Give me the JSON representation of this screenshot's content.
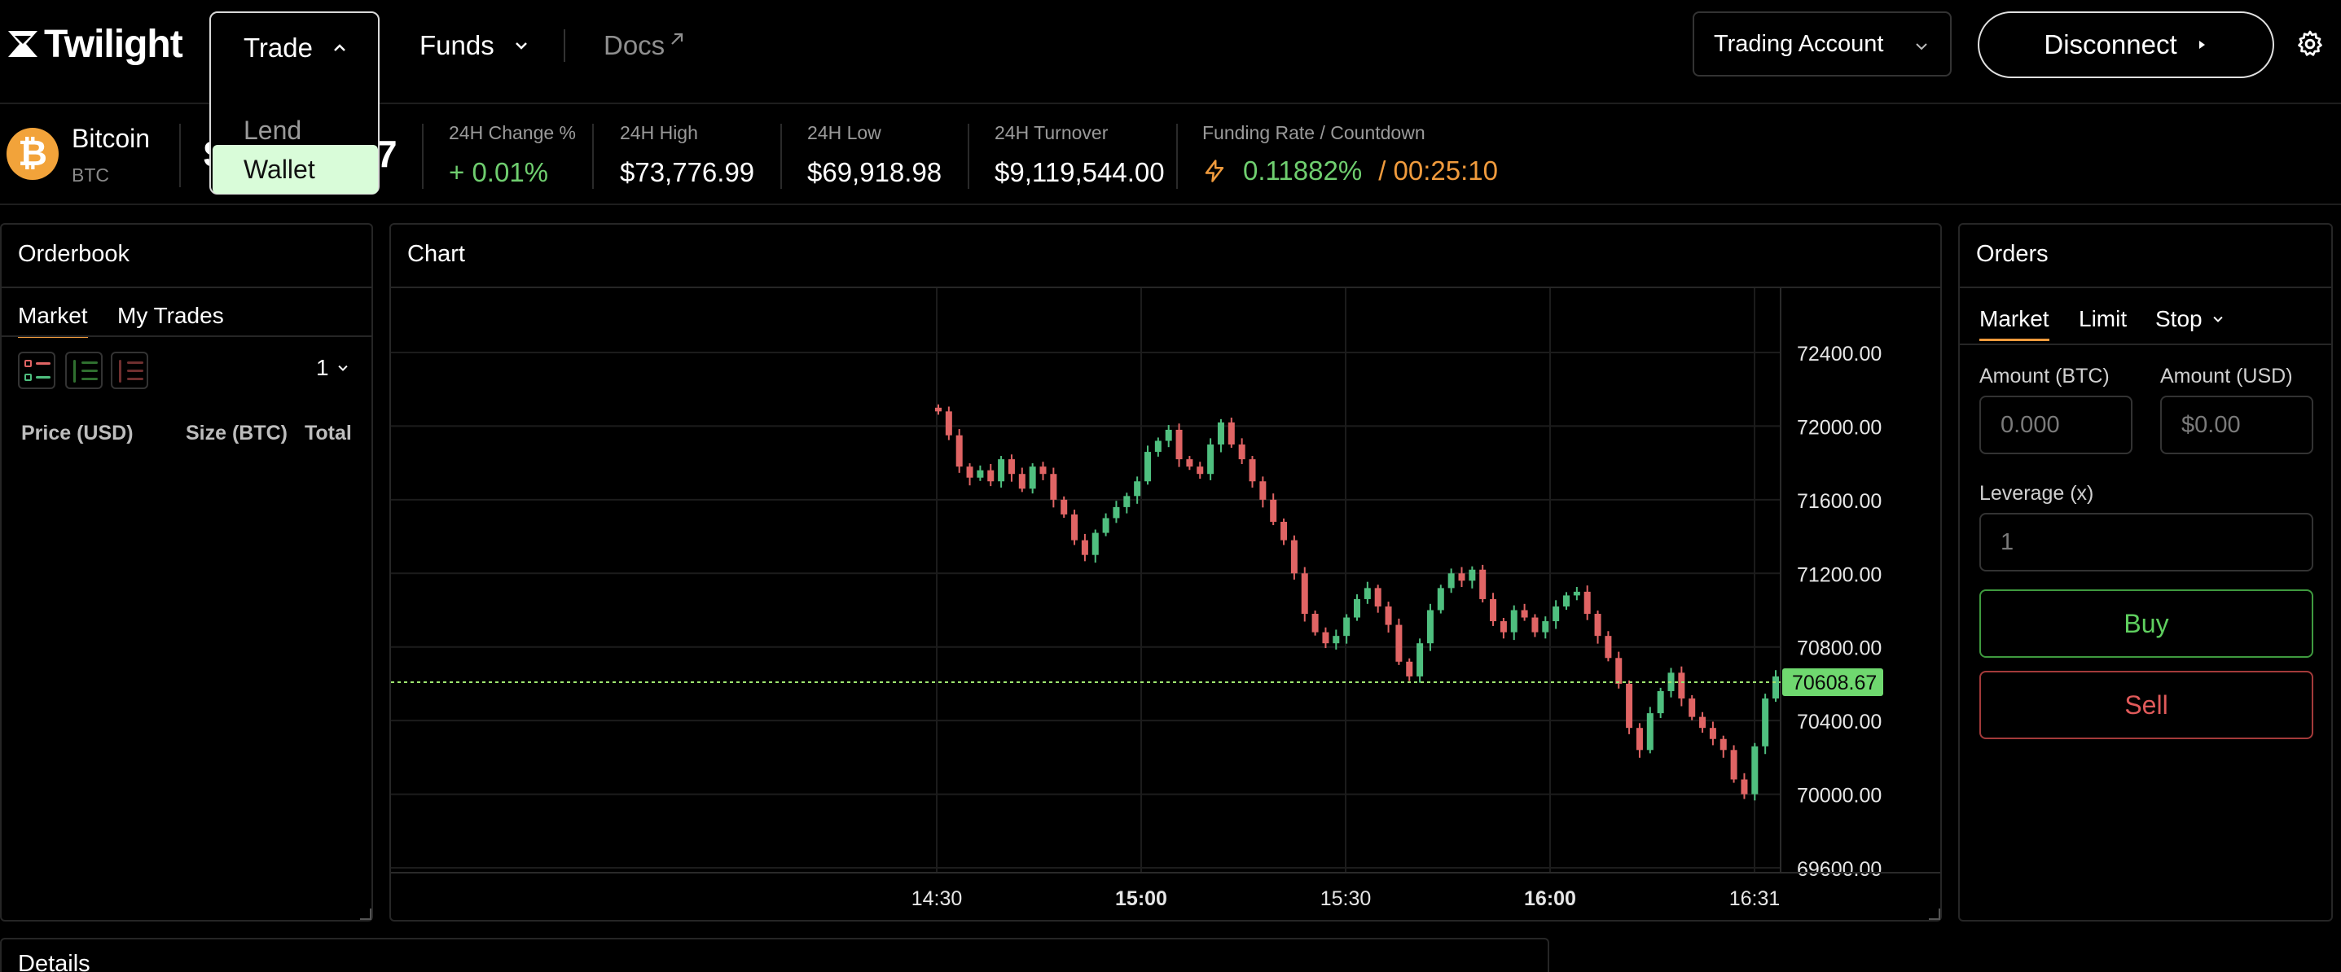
{
  "header": {
    "logo_text": "Twilight",
    "nav": {
      "trade": "Trade",
      "funds": "Funds",
      "docs": "Docs"
    },
    "trade_menu": {
      "lend": "Lend",
      "wallet": "Wallet"
    },
    "account_select": "Trading Account",
    "disconnect": "Disconnect"
  },
  "ticker": {
    "coin_name": "Bitcoin",
    "coin_symbol": "BTC",
    "price_fragment_left": "$",
    "price_fragment_right": "7",
    "change_label": "24H Change %",
    "change_value": "+ 0.01%",
    "high_label": "24H High",
    "high_value": "$73,776.99",
    "low_label": "24H Low",
    "low_value": "$69,918.98",
    "turnover_label": "24H Turnover",
    "turnover_value": "$9,119,544.00",
    "funding_label": "Funding Rate / Countdown",
    "funding_rate": "0.11882%",
    "funding_countdown": "/ 00:25:10"
  },
  "orderbook": {
    "title": "Orderbook",
    "tabs": [
      "Market",
      "My Trades"
    ],
    "depth": "1",
    "columns": [
      "Price (USD)",
      "Size (BTC)",
      "Total"
    ]
  },
  "chart": {
    "title": "Chart",
    "current_price_label": "70608.67",
    "colors": {
      "up": "#4fbf7f",
      "down": "#e06464",
      "price_line": "#9fe870"
    }
  },
  "chart_data": {
    "type": "candlestick",
    "x_ticks": [
      "14:30",
      "15:00",
      "15:30",
      "16:00",
      "16:31"
    ],
    "x_ticks_bold": [
      false,
      true,
      false,
      true,
      false
    ],
    "y_ticks": [
      "72400.00",
      "72000.00",
      "71600.00",
      "71200.00",
      "70800.00",
      "70400.00",
      "70000.00",
      "69600.00"
    ],
    "ylim": [
      69600,
      72400
    ],
    "current_price": 70608.67,
    "closes": [
      72080,
      71950,
      71780,
      71720,
      71760,
      71700,
      71820,
      71740,
      71660,
      71780,
      71740,
      71600,
      71520,
      71380,
      71300,
      71420,
      71500,
      71560,
      71620,
      71700,
      71860,
      71920,
      71980,
      71820,
      71780,
      71740,
      71900,
      72020,
      71900,
      71820,
      71700,
      71600,
      71480,
      71380,
      71200,
      70980,
      70880,
      70820,
      70860,
      70960,
      71060,
      71120,
      71020,
      70920,
      70720,
      70640,
      70820,
      71000,
      71120,
      71200,
      71160,
      71220,
      71060,
      70940,
      70880,
      71000,
      70960,
      70880,
      70940,
      71020,
      71080,
      71100,
      70980,
      70860,
      70740,
      70600,
      70360,
      70240,
      70440,
      70560,
      70660,
      70520,
      70420,
      70360,
      70300,
      70240,
      70080,
      70000,
      70260,
      70520,
      70640
    ]
  },
  "orders": {
    "title": "Orders",
    "tabs": [
      "Market",
      "Limit",
      "Stop"
    ],
    "amount_btc_label": "Amount (BTC)",
    "amount_btc_placeholder": "0.000",
    "amount_usd_label": "Amount (USD)",
    "amount_usd_placeholder": "$0.00",
    "leverage_label": "Leverage (x)",
    "leverage_value": "1",
    "buy": "Buy",
    "sell": "Sell"
  },
  "details": {
    "title": "Details"
  }
}
